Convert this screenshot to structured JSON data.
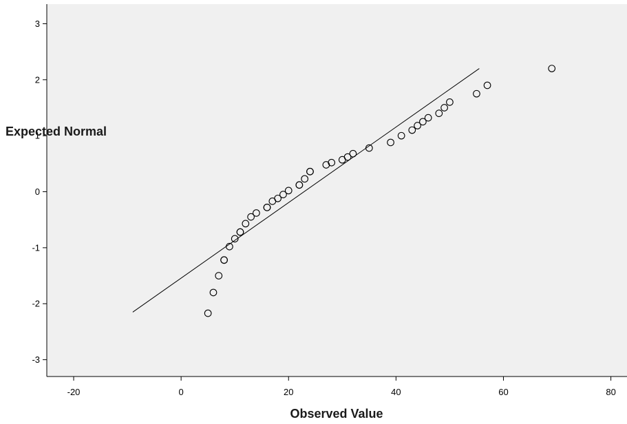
{
  "chart_data": {
    "type": "scatter",
    "subtype": "normal Q-Q plot",
    "xlabel": "Observed Value",
    "ylabel": "Expected Normal",
    "xlim": [
      -25,
      83
    ],
    "ylim": [
      -3.3,
      3.35
    ],
    "x_ticks": [
      -20,
      0,
      20,
      40,
      60,
      80
    ],
    "y_ticks": [
      -3,
      -2,
      -1,
      0,
      1,
      2,
      3
    ],
    "grid": false,
    "plot_background": "#f0f0f0",
    "marker": "open-circle",
    "points": [
      {
        "x": 5,
        "y": -2.17
      },
      {
        "x": 6,
        "y": -1.8
      },
      {
        "x": 7,
        "y": -1.5
      },
      {
        "x": 8,
        "y": -1.22
      },
      {
        "x": 8,
        "y": -1.22
      },
      {
        "x": 9,
        "y": -0.98
      },
      {
        "x": 10,
        "y": -0.84
      },
      {
        "x": 11,
        "y": -0.72
      },
      {
        "x": 11,
        "y": -0.72
      },
      {
        "x": 12,
        "y": -0.57
      },
      {
        "x": 13,
        "y": -0.45
      },
      {
        "x": 14,
        "y": -0.38
      },
      {
        "x": 16,
        "y": -0.28
      },
      {
        "x": 16,
        "y": -0.28
      },
      {
        "x": 17,
        "y": -0.17
      },
      {
        "x": 18,
        "y": -0.12
      },
      {
        "x": 19,
        "y": -0.05
      },
      {
        "x": 20,
        "y": 0.02
      },
      {
        "x": 22,
        "y": 0.12
      },
      {
        "x": 22,
        "y": 0.12
      },
      {
        "x": 23,
        "y": 0.23
      },
      {
        "x": 24,
        "y": 0.36
      },
      {
        "x": 24,
        "y": 0.36
      },
      {
        "x": 27,
        "y": 0.48
      },
      {
        "x": 28,
        "y": 0.52
      },
      {
        "x": 30,
        "y": 0.57
      },
      {
        "x": 31,
        "y": 0.62
      },
      {
        "x": 32,
        "y": 0.68
      },
      {
        "x": 35,
        "y": 0.78
      },
      {
        "x": 39,
        "y": 0.88
      },
      {
        "x": 41,
        "y": 1.0
      },
      {
        "x": 43,
        "y": 1.1
      },
      {
        "x": 44,
        "y": 1.18
      },
      {
        "x": 45,
        "y": 1.25
      },
      {
        "x": 46,
        "y": 1.32
      },
      {
        "x": 48,
        "y": 1.4
      },
      {
        "x": 49,
        "y": 1.5
      },
      {
        "x": 50,
        "y": 1.6
      },
      {
        "x": 55,
        "y": 1.75
      },
      {
        "x": 57,
        "y": 1.9
      },
      {
        "x": 69,
        "y": 2.2
      }
    ],
    "reference_line": {
      "x": [
        -9,
        55.5
      ],
      "y": [
        -2.15,
        2.2
      ]
    }
  }
}
